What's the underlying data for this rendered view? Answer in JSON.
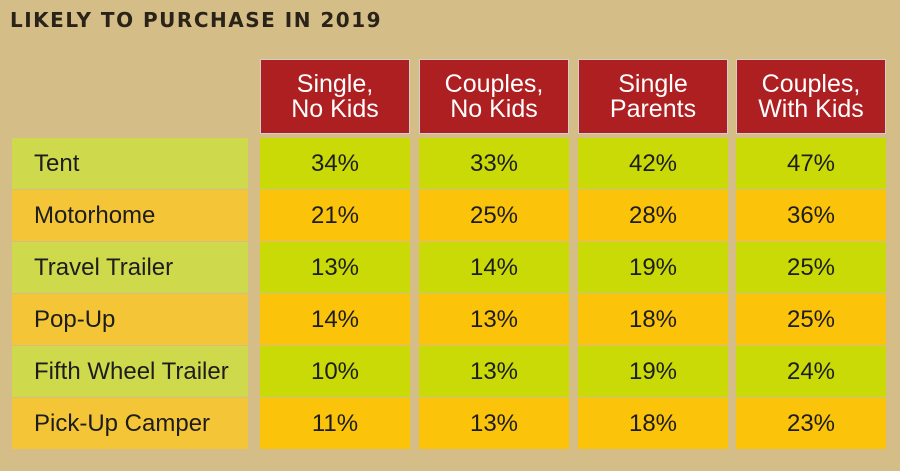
{
  "chart_data": {
    "type": "table",
    "title": "LIKELY TO PURCHASE IN 2019",
    "columns": [
      "Single,\nNo Kids",
      "Couples,\nNo Kids",
      "Single\nParents",
      "Couples,\nWith Kids"
    ],
    "rows": [
      {
        "label": "Tent",
        "values": [
          "34%",
          "33%",
          "42%",
          "47%"
        ]
      },
      {
        "label": "Motorhome",
        "values": [
          "21%",
          "25%",
          "28%",
          "36%"
        ]
      },
      {
        "label": "Travel Trailer",
        "values": [
          "13%",
          "14%",
          "19%",
          "25%"
        ]
      },
      {
        "label": "Pop-Up",
        "values": [
          "14%",
          "13%",
          "18%",
          "25%"
        ]
      },
      {
        "label": "Fifth Wheel Trailer",
        "values": [
          "10%",
          "13%",
          "19%",
          "24%"
        ]
      },
      {
        "label": "Pick-Up Camper",
        "values": [
          "11%",
          "13%",
          "18%",
          "23%"
        ]
      }
    ]
  },
  "colors": {
    "header": "#ad1f21",
    "row_green": "#c9da07",
    "row_orange": "#fbc30a",
    "background": "#d4bd86"
  }
}
